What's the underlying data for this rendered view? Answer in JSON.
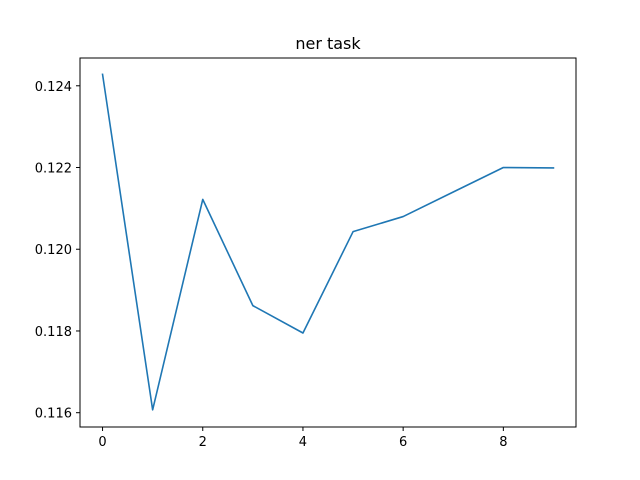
{
  "chart_data": {
    "type": "line",
    "title": "ner task",
    "xlabel": "",
    "ylabel": "",
    "x": [
      0,
      1,
      2,
      3,
      4,
      5,
      6,
      7,
      8,
      9
    ],
    "series": [
      {
        "values": [
          0.12428,
          0.11607,
          0.12122,
          0.11862,
          0.11795,
          0.12043,
          0.1208,
          0.1214,
          0.122,
          0.12199
        ],
        "color": "#1f77b4"
      }
    ],
    "xlim": [
      -0.45,
      9.45
    ],
    "ylim": [
      0.11565,
      0.12468
    ],
    "xticks": [
      0,
      2,
      4,
      6,
      8
    ],
    "xtick_labels": [
      "0",
      "2",
      "4",
      "6",
      "8"
    ],
    "yticks": [
      0.116,
      0.118,
      0.12,
      0.122,
      0.124
    ],
    "ytick_labels": [
      "0.116",
      "0.118",
      "0.120",
      "0.122",
      "0.124"
    ],
    "grid": false,
    "legend": "none"
  }
}
